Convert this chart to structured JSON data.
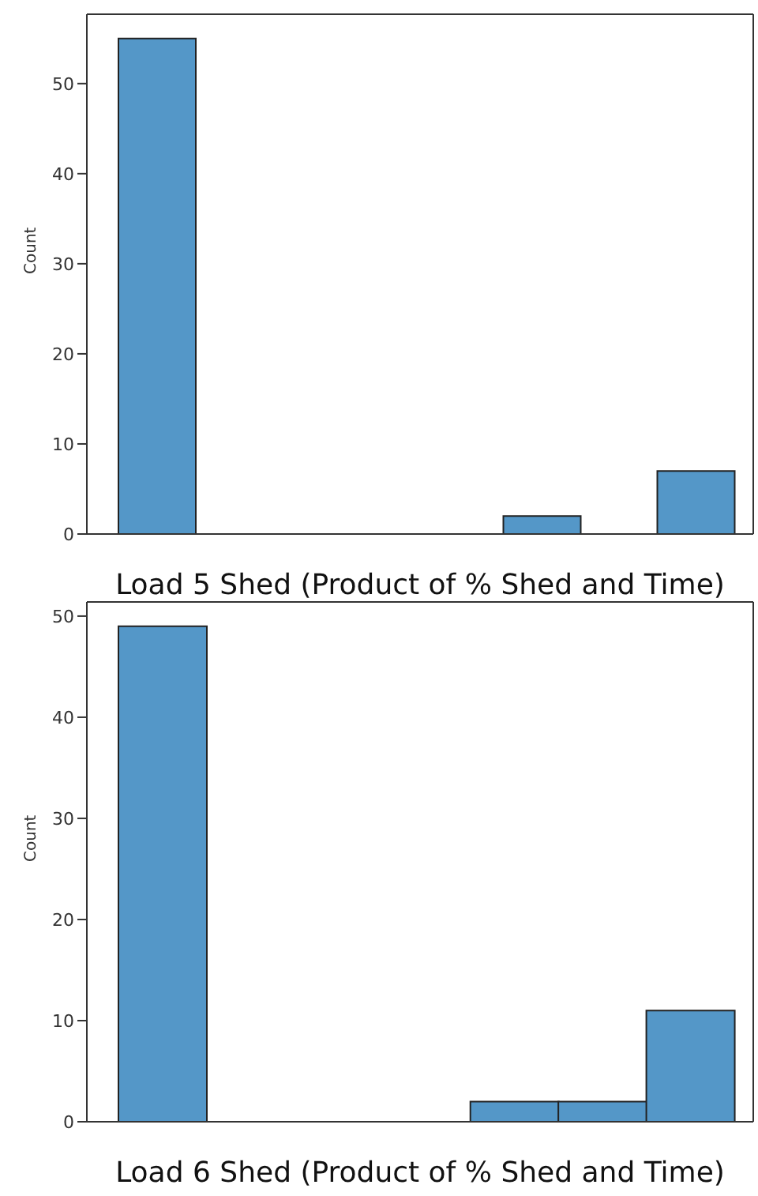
{
  "chart_data": [
    {
      "type": "bar",
      "xlabel": "Load 5 Shed (Product of % Shed and Time)",
      "ylabel": "Count",
      "categories": [
        null,
        null,
        null,
        null,
        null,
        null,
        null,
        null
      ],
      "values": [
        55,
        0,
        0,
        0,
        0,
        2,
        0,
        7
      ],
      "color": "#5497c8",
      "ylim": [
        0,
        57.7
      ],
      "yticks": [
        0,
        10,
        20,
        30,
        40,
        50
      ],
      "tick_labels": "y"
    },
    {
      "type": "bar",
      "xlabel": "Load 6 Shed (Product of % Shed and Time)",
      "ylabel": "Count",
      "categories": [
        null,
        null,
        null,
        null,
        null,
        null,
        null
      ],
      "values": [
        49,
        0,
        0,
        0,
        2,
        2,
        11
      ],
      "color": "#5497c8",
      "ylim": [
        0,
        51.4
      ],
      "yticks": [
        0,
        10,
        20,
        30,
        40,
        50
      ],
      "tick_labels": "y"
    }
  ]
}
